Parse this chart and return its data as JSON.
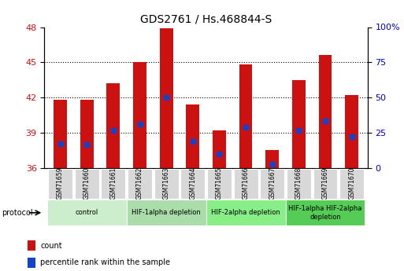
{
  "title": "GDS2761 / Hs.468844-S",
  "samples": [
    "GSM71659",
    "GSM71660",
    "GSM71661",
    "GSM71662",
    "GSM71663",
    "GSM71664",
    "GSM71665",
    "GSM71666",
    "GSM71667",
    "GSM71668",
    "GSM71669",
    "GSM71670"
  ],
  "bar_tops": [
    41.8,
    41.8,
    43.2,
    45.0,
    47.9,
    41.4,
    39.2,
    44.8,
    37.5,
    43.5,
    45.6,
    42.2
  ],
  "bar_bottom": 36.0,
  "blue_marker_values": [
    38.1,
    38.0,
    39.2,
    39.75,
    42.0,
    38.3,
    37.2,
    39.5,
    36.35,
    39.2,
    40.0,
    38.7
  ],
  "ylim_left": [
    36,
    48
  ],
  "ylim_right": [
    0,
    100
  ],
  "yticks_left": [
    36,
    39,
    42,
    45,
    48
  ],
  "yticks_right": [
    0,
    25,
    50,
    75,
    100
  ],
  "ytick_labels_right": [
    "0",
    "25",
    "50",
    "75",
    "100%"
  ],
  "bar_color": "#cc1111",
  "marker_color": "#1144cc",
  "groups": [
    {
      "label": "control",
      "start": 0,
      "end": 3,
      "color": "#cceecc"
    },
    {
      "label": "HIF-1alpha depletion",
      "start": 3,
      "end": 6,
      "color": "#aaddaa"
    },
    {
      "label": "HIF-2alpha depletion",
      "start": 6,
      "end": 9,
      "color": "#88ee88"
    },
    {
      "label": "HIF-1alpha HIF-2alpha\ndepletion",
      "start": 9,
      "end": 12,
      "color": "#55cc55"
    }
  ],
  "protocol_label": "protocol",
  "legend_items": [
    "count",
    "percentile rank within the sample"
  ],
  "tick_label_color_left": "#cc1111",
  "tick_label_color_right": "#0000cc"
}
